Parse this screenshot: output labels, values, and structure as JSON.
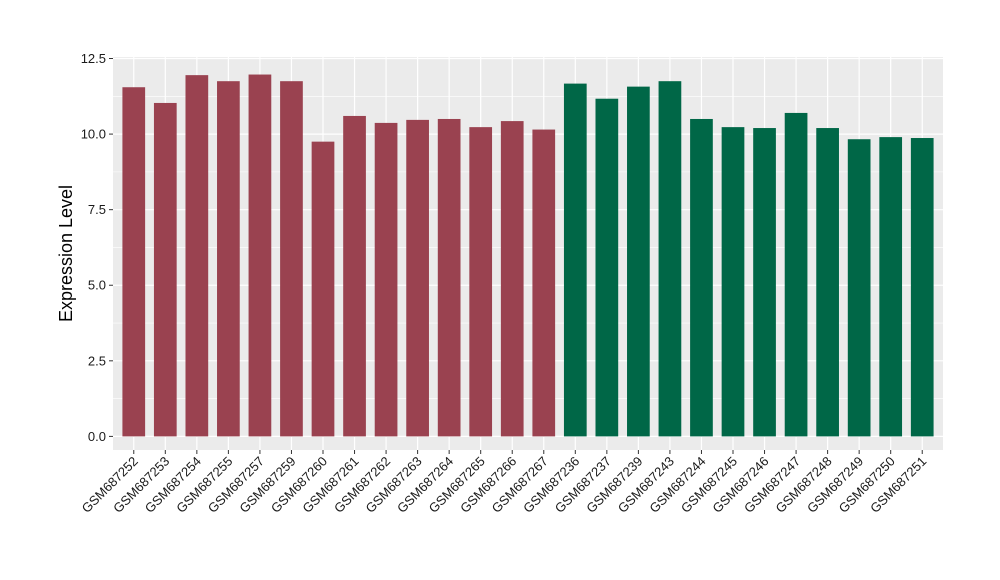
{
  "chart_data": {
    "type": "bar",
    "title": "",
    "xlabel": "",
    "ylabel": "Expression Level",
    "ylim": [
      -0.45,
      12.55
    ],
    "yticks": [
      0.0,
      2.5,
      5.0,
      7.5,
      10.0,
      12.5
    ],
    "ytick_labels": [
      "0.0",
      "2.5",
      "5.0",
      "7.5",
      "10.0",
      "12.5"
    ],
    "grid": true,
    "legend": "none",
    "panel_background": "#ebebeb",
    "grid_color": "#ffffff",
    "categories": [
      "GSM687252",
      "GSM687253",
      "GSM687254",
      "GSM687255",
      "GSM687257",
      "GSM687259",
      "GSM687260",
      "GSM687261",
      "GSM687262",
      "GSM687263",
      "GSM687264",
      "GSM687265",
      "GSM687266",
      "GSM687267",
      "GSM687236",
      "GSM687237",
      "GSM687239",
      "GSM687243",
      "GSM687244",
      "GSM687245",
      "GSM687246",
      "GSM687247",
      "GSM687248",
      "GSM687249",
      "GSM687250",
      "GSM687251"
    ],
    "values": [
      11.55,
      11.03,
      11.95,
      11.75,
      11.97,
      11.75,
      9.75,
      10.6,
      10.37,
      10.47,
      10.5,
      10.23,
      10.43,
      10.15,
      11.67,
      11.17,
      11.57,
      11.75,
      10.5,
      10.23,
      10.2,
      10.7,
      10.2,
      9.83,
      9.9,
      9.87
    ],
    "bar_colors": [
      "#9a4250",
      "#9a4250",
      "#9a4250",
      "#9a4250",
      "#9a4250",
      "#9a4250",
      "#9a4250",
      "#9a4250",
      "#9a4250",
      "#9a4250",
      "#9a4250",
      "#9a4250",
      "#9a4250",
      "#9a4250",
      "#006747",
      "#006747",
      "#006747",
      "#006747",
      "#006747",
      "#006747",
      "#006747",
      "#006747",
      "#006747",
      "#006747",
      "#006747",
      "#006747"
    ]
  }
}
